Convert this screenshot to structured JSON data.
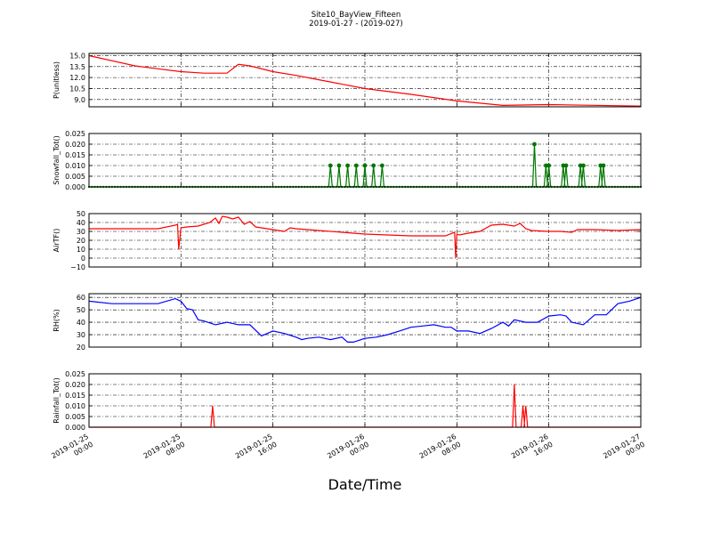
{
  "chart_data": [
    {
      "type": "line",
      "ylabel": "P(unitless)",
      "yticks": [
        "15.0",
        "13.5",
        "12.0",
        "10.5",
        "9.0"
      ],
      "ylim": [
        8.0,
        15.3
      ],
      "grid": true,
      "markers": false,
      "color": "#ff0000",
      "x": [
        0,
        4,
        6,
        8,
        10,
        12,
        13,
        14,
        16,
        18,
        20,
        24,
        28,
        32,
        36,
        40,
        48
      ],
      "y": [
        15.0,
        13.6,
        13.2,
        12.8,
        12.6,
        12.6,
        13.8,
        13.6,
        12.8,
        12.3,
        11.7,
        10.5,
        9.7,
        8.8,
        8.2,
        8.3,
        8.1
      ]
    },
    {
      "type": "line",
      "ylabel": "Snowfall_Tot()",
      "yticks": [
        "0.025",
        "0.020",
        "0.015",
        "0.010",
        "0.005",
        "0.000"
      ],
      "ylim": [
        0.0,
        0.025
      ],
      "grid": true,
      "markers": true,
      "color": "#007700",
      "spikes_x": [
        21,
        21.75,
        22.5,
        23.25,
        24,
        24.75,
        25.5,
        38.75,
        39.75,
        40,
        41.25,
        41.5,
        42.75,
        43,
        44.5,
        44.75
      ],
      "spikes_y": [
        0.01,
        0.01,
        0.01,
        0.01,
        0.01,
        0.01,
        0.01,
        0.02,
        0.01,
        0.01,
        0.01,
        0.01,
        0.01,
        0.01,
        0.01,
        0.01
      ]
    },
    {
      "type": "line",
      "ylabel": "AirTF()",
      "yticks": [
        "50",
        "40",
        "30",
        "20",
        "10",
        "0",
        "−10"
      ],
      "ylim": [
        -10,
        50
      ],
      "grid": true,
      "markers": false,
      "color": "#ff0000",
      "x": [
        0,
        3,
        6,
        7.5,
        7.7,
        7.8,
        8.0,
        8.5,
        9.5,
        10.5,
        11,
        11.3,
        11.6,
        12,
        12.5,
        13,
        13.5,
        14,
        14.5,
        15,
        16,
        17,
        17.5,
        18,
        20,
        24,
        28,
        31,
        31.8,
        31.9,
        32.0,
        32.2,
        33,
        34,
        35,
        36,
        37,
        37.5,
        38,
        38.5,
        40,
        41,
        42,
        42.5,
        44,
        46,
        48
      ],
      "y": [
        33,
        33,
        33,
        37,
        38,
        10,
        34,
        35,
        36,
        40,
        45,
        39,
        47,
        46,
        44,
        46,
        38,
        41,
        35,
        34,
        32,
        30,
        34,
        33,
        31,
        27,
        25,
        25,
        29,
        0,
        27,
        26,
        28,
        30,
        37,
        38,
        36,
        39,
        33,
        31,
        30,
        30,
        29,
        32,
        32,
        31,
        32
      ]
    },
    {
      "type": "line",
      "ylabel": "RH(%)",
      "yticks": [
        "60",
        "50",
        "40",
        "30",
        "20"
      ],
      "ylim": [
        20,
        63
      ],
      "grid": true,
      "markers": false,
      "color": "#0000ff",
      "x": [
        0,
        2,
        4,
        6,
        7.5,
        8,
        8.5,
        9,
        9.5,
        10,
        11,
        12,
        13,
        14,
        15,
        16,
        17,
        18,
        18.5,
        19,
        20,
        21,
        22,
        22.5,
        23,
        24,
        25,
        26,
        27,
        28,
        29,
        30,
        31,
        31.5,
        32,
        33,
        34,
        35,
        36,
        36.5,
        37,
        38,
        39,
        40,
        41,
        41.5,
        42,
        43,
        44,
        45,
        46,
        47,
        48
      ],
      "y": [
        57,
        55,
        55,
        55,
        59,
        57,
        51,
        50,
        42,
        41,
        38,
        40,
        38,
        38,
        29,
        33,
        31,
        28,
        26,
        27,
        28,
        26,
        28,
        24,
        24,
        27,
        28,
        30,
        33,
        36,
        37,
        38,
        36,
        36,
        33,
        33,
        31,
        35,
        40,
        37,
        42,
        40,
        40,
        45,
        46,
        45,
        40,
        38,
        46,
        46,
        55,
        57,
        60
      ]
    },
    {
      "type": "line",
      "ylabel": "Rainfall_Tot()",
      "yticks": [
        "0.025",
        "0.020",
        "0.015",
        "0.010",
        "0.005",
        "0.000"
      ],
      "ylim": [
        0.0,
        0.025
      ],
      "grid": true,
      "markers": false,
      "color": "#ff0000",
      "spikes_x": [
        10.75,
        37.0,
        37.75,
        38.0
      ],
      "spikes_y": [
        0.01,
        0.02,
        0.01,
        0.01
      ]
    }
  ],
  "title": {
    "line1": "Site10_BayView_Fifteen",
    "line2": "2019-01-27 - (2019-027)"
  },
  "xaxis": {
    "label": "Date/Time",
    "ticks": [
      {
        "hour": 0,
        "l1": "2019-01-25",
        "l2": "00:00"
      },
      {
        "hour": 8,
        "l1": "2019-01-25",
        "l2": "08:00"
      },
      {
        "hour": 16,
        "l1": "2019-01-25",
        "l2": "16:00"
      },
      {
        "hour": 24,
        "l1": "2019-01-26",
        "l2": "00:00"
      },
      {
        "hour": 32,
        "l1": "2019-01-26",
        "l2": "08:00"
      },
      {
        "hour": 40,
        "l1": "2019-01-26",
        "l2": "16:00"
      },
      {
        "hour": 48,
        "l1": "2019-01-27",
        "l2": "00:00"
      }
    ]
  }
}
